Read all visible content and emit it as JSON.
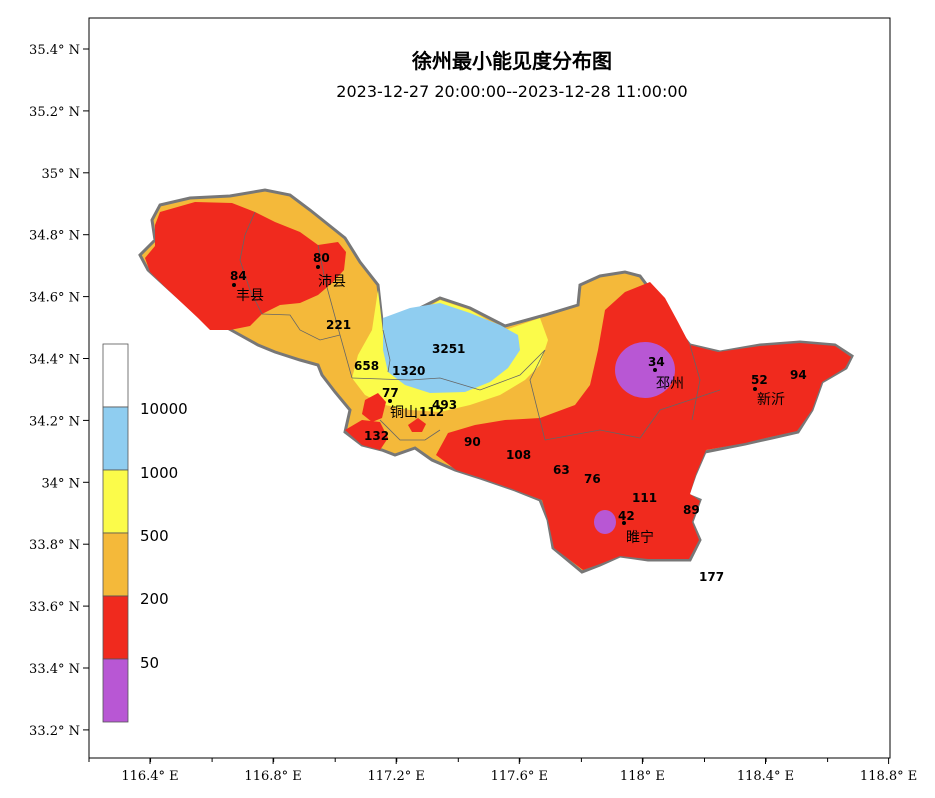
{
  "title": "徐州最小能见度分布图",
  "subtitle": "2023-12-27 20:00:00--2023-12-28 11:00:00",
  "y_ticks": [
    "35.4° N",
    "35.2° N",
    "35° N",
    "34.8° N",
    "34.6° N",
    "34.4° N",
    "34.2° N",
    "34° N",
    "33.8° N",
    "33.6° N",
    "33.4° N",
    "33.2° N"
  ],
  "x_ticks": [
    "116.4° E",
    "116.8° E",
    "117.2° E",
    "117.6° E",
    "118° E",
    "118.4° E",
    "118.8° E"
  ],
  "legend": {
    "levels": [
      "50",
      "200",
      "500",
      "1000",
      "10000"
    ],
    "colors": {
      "lt50": "#b857d4",
      "50to200": "#f02a1e",
      "200to500": "#f4b93a",
      "500to1000": "#fbfb4a",
      "1000to10000": "#8fcdf0",
      "gt10000": "#ffffff"
    }
  },
  "cities": [
    {
      "name": "丰县"
    },
    {
      "name": "沛县"
    },
    {
      "name": "铜山"
    },
    {
      "name": "邳州"
    },
    {
      "name": "新沂"
    },
    {
      "name": "睢宁"
    }
  ],
  "stations": [
    "84",
    "80",
    "221",
    "658",
    "3251",
    "1320",
    "77",
    "493",
    "112",
    "132",
    "90",
    "108",
    "63",
    "76",
    "111",
    "42",
    "89",
    "34",
    "52",
    "94",
    "177"
  ]
}
